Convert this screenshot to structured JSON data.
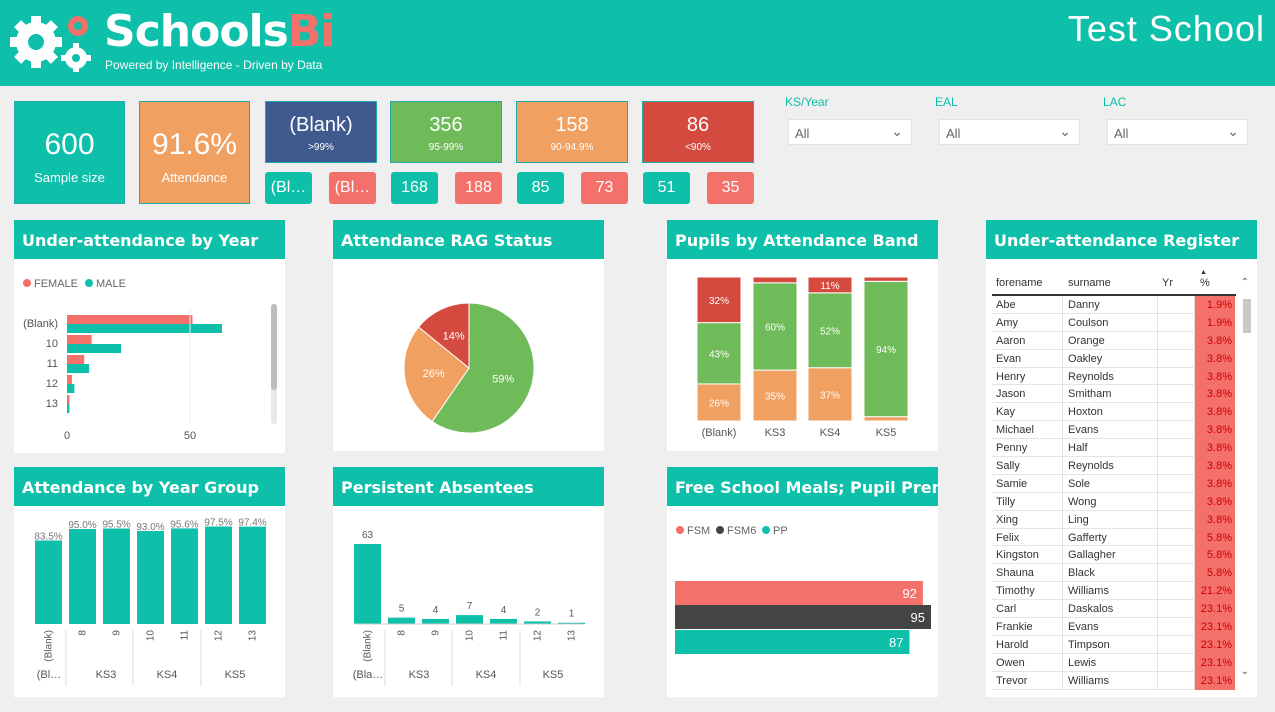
{
  "header": {
    "brand": "Schools",
    "brand_accent": "Bi",
    "tagline": "Powered by Intelligence - Driven by Data",
    "school": "Test School"
  },
  "kpis": [
    {
      "value": "600",
      "label": "Sample size",
      "color": "#0ebfaa"
    },
    {
      "value": "91.6%",
      "label": "Attendance",
      "color": "#f0a060"
    },
    {
      "value": "(Blank)",
      "label": ">99%",
      "color": "#3f5a8f"
    },
    {
      "value": "356",
      "label": "95-99%",
      "color": "#6fba59"
    },
    {
      "value": "158",
      "label": "90-94.9%",
      "color": "#f0a060"
    },
    {
      "value": "86",
      "label": "<90%",
      "color": "#d44a3f"
    }
  ],
  "pills": [
    {
      "value": "(Bl…",
      "color": "#0ebfaa"
    },
    {
      "value": "(Bl…",
      "color": "#f4706b"
    },
    {
      "value": "168",
      "color": "#0ebfaa"
    },
    {
      "value": "188",
      "color": "#f4706b"
    },
    {
      "value": "85",
      "color": "#0ebfaa"
    },
    {
      "value": "73",
      "color": "#f4706b"
    },
    {
      "value": "51",
      "color": "#0ebfaa"
    },
    {
      "value": "35",
      "color": "#f4706b"
    }
  ],
  "slicers": [
    {
      "label": "KS/Year",
      "value": "All"
    },
    {
      "label": "EAL",
      "value": "All"
    },
    {
      "label": "LAC",
      "value": "All"
    }
  ],
  "panels": {
    "under_year": "Under-attendance by Year",
    "rag": "Attendance RAG Status",
    "band": "Pupils by Attendance Band",
    "register": "Under-attendance Register",
    "year_group": "Attendance by Year Group",
    "persistent": "Persistent Absentees",
    "fsm": "Free School Meals; Pupil Prem."
  },
  "colors": {
    "teal": "#0ebfaa",
    "coral": "#f4706b",
    "green": "#6fba59",
    "orange": "#f0a060",
    "red": "#d44a3f",
    "dark": "#444444"
  },
  "chart_data": [
    {
      "type": "bar",
      "orientation": "horizontal",
      "title": "Under-attendance by Year",
      "categories": [
        "(Blank)",
        "10",
        "11",
        "12",
        "13"
      ],
      "series": [
        {
          "name": "FEMALE",
          "values": [
            51,
            10,
            7,
            2,
            1
          ]
        },
        {
          "name": "MALE",
          "values": [
            63,
            22,
            9,
            3,
            1
          ]
        }
      ],
      "xticks": [
        "0",
        "50"
      ],
      "xlim": [
        0,
        65
      ],
      "legend": "top-left"
    },
    {
      "type": "pie",
      "title": "Attendance RAG Status",
      "slices": [
        {
          "label": "59%",
          "value": 59,
          "color": "#6fba59"
        },
        {
          "label": "26%",
          "value": 26,
          "color": "#f0a060"
        },
        {
          "label": "14%",
          "value": 14,
          "color": "#d44a3f"
        }
      ]
    },
    {
      "type": "bar",
      "stacked": "100%",
      "title": "Pupils by Attendance Band",
      "categories": [
        "(Blank)",
        "KS3",
        "KS4",
        "KS5"
      ],
      "series": [
        {
          "values": [
            26,
            35,
            37,
            3
          ],
          "labels": [
            "26%",
            "35%",
            "37%",
            ""
          ],
          "color": "#f0a060"
        },
        {
          "values": [
            43,
            60,
            52,
            94
          ],
          "labels": [
            "43%",
            "60%",
            "52%",
            "94%"
          ],
          "color": "#6fba59"
        },
        {
          "values": [
            32,
            4,
            11,
            3
          ],
          "labels": [
            "32%",
            "",
            "11%",
            ""
          ],
          "color": "#d44a3f"
        }
      ]
    },
    {
      "type": "bar",
      "title": "Attendance by Year Group",
      "categories": [
        "(Blank)",
        "8",
        "9",
        "10",
        "11",
        "12",
        "13"
      ],
      "groups": [
        "(Bl…",
        "KS3",
        "KS4",
        "KS5"
      ],
      "values": [
        83.5,
        95.0,
        95.5,
        93.0,
        95.6,
        97.5,
        97.4
      ],
      "labels": [
        "83.5%",
        "95.0%",
        "95.5%",
        "93.0%",
        "95.6%",
        "97.5%",
        "97.4%"
      ],
      "ylim": [
        0,
        100
      ]
    },
    {
      "type": "bar",
      "title": "Persistent Absentees",
      "categories": [
        "(Blank)",
        "8",
        "9",
        "10",
        "11",
        "12",
        "13"
      ],
      "groups": [
        "(Bla…",
        "KS3",
        "KS4",
        "KS5"
      ],
      "values": [
        63,
        5,
        4,
        7,
        4,
        2,
        1
      ],
      "ylim": [
        0,
        65
      ]
    },
    {
      "type": "bar",
      "orientation": "horizontal",
      "title": "Free School Meals; Pupil Prem.",
      "series": [
        {
          "name": "FSM",
          "values": [
            92
          ],
          "color": "#f4706b"
        },
        {
          "name": "FSM6",
          "values": [
            95
          ],
          "color": "#444444"
        },
        {
          "name": "PP",
          "values": [
            87
          ],
          "color": "#0ebfaa"
        }
      ],
      "xlim": [
        0,
        95
      ],
      "legend": "top-left"
    }
  ],
  "register": {
    "columns": [
      "forename",
      "surname",
      "Yr",
      "%"
    ],
    "rows": [
      [
        "Abe",
        "Danny",
        "",
        "1.9%"
      ],
      [
        "Amy",
        "Coulson",
        "",
        "1.9%"
      ],
      [
        "Aaron",
        "Orange",
        "",
        "3.8%"
      ],
      [
        "Evan",
        "Oakley",
        "",
        "3.8%"
      ],
      [
        "Henry",
        "Reynolds",
        "",
        "3.8%"
      ],
      [
        "Jason",
        "Smitham",
        "",
        "3.8%"
      ],
      [
        "Kay",
        "Hoxton",
        "",
        "3.8%"
      ],
      [
        "Michael",
        "Evans",
        "",
        "3.8%"
      ],
      [
        "Penny",
        "Half",
        "",
        "3.8%"
      ],
      [
        "Sally",
        "Reynolds",
        "",
        "3.8%"
      ],
      [
        "Samie",
        "Sole",
        "",
        "3.8%"
      ],
      [
        "Tilly",
        "Wong",
        "",
        "3.8%"
      ],
      [
        "Xing",
        "Ling",
        "",
        "3.8%"
      ],
      [
        "Felix",
        "Gafferty",
        "",
        "5.8%"
      ],
      [
        "Kingston",
        "Gallagher",
        "",
        "5.8%"
      ],
      [
        "Shauna",
        "Black",
        "",
        "5.8%"
      ],
      [
        "Timothy",
        "Williams",
        "",
        "21.2%"
      ],
      [
        "Carl",
        "Daskalos",
        "",
        "23.1%"
      ],
      [
        "Frankie",
        "Evans",
        "",
        "23.1%"
      ],
      [
        "Harold",
        "Timpson",
        "",
        "23.1%"
      ],
      [
        "Owen",
        "Lewis",
        "",
        "23.1%"
      ],
      [
        "Trevor",
        "Williams",
        "",
        "23.1%"
      ]
    ]
  }
}
